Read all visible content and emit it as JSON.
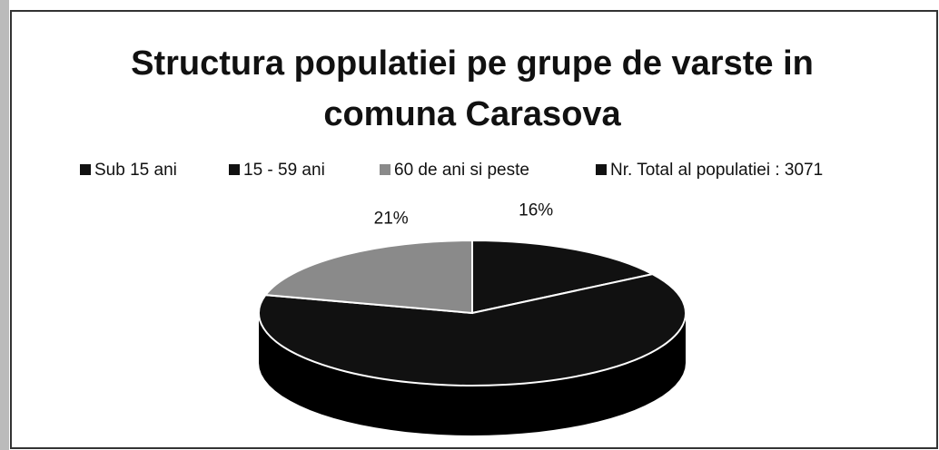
{
  "chart_data": {
    "type": "pie3d",
    "title": "Structura populatiei pe grupe de varste in comuna Carasova",
    "categories": [
      "Sub 15 ani",
      "15 - 59 ani",
      "60 de ani si peste",
      "Nr. Total al populatiei : 3071"
    ],
    "values": [
      16,
      63,
      21,
      null
    ],
    "value_labels": [
      "16%",
      null,
      "21%",
      null
    ],
    "colors": [
      "#111111",
      "#111111",
      "#8a8a8a",
      "#111111"
    ],
    "legend": "top"
  }
}
